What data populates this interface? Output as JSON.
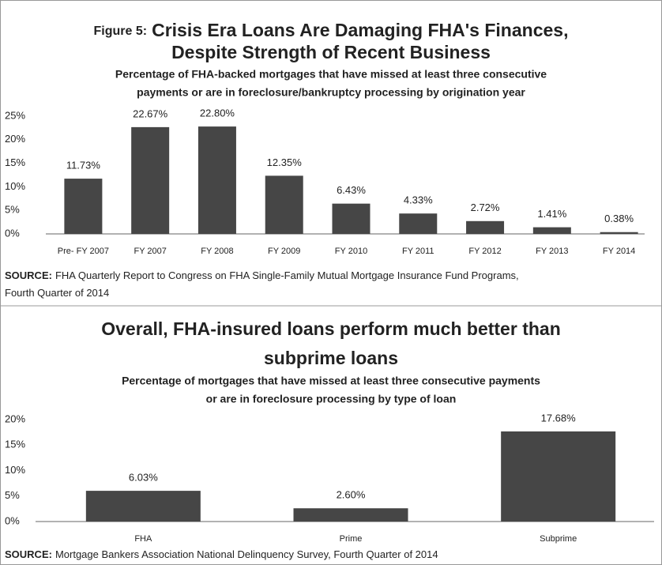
{
  "chart_data": [
    {
      "type": "bar",
      "figure_label": "Figure 5:",
      "title": [
        "Crisis Era Loans Are Damaging FHA's Finances,",
        "Despite Strength of Recent Business"
      ],
      "subtitle": [
        "Percentage of FHA-backed mortgages that have missed at least three consecutive",
        "payments or are in foreclosure/bankruptcy processing by origination year"
      ],
      "categories": [
        "Pre- FY 2007",
        "FY 2007",
        "FY 2008",
        "FY 2009",
        "FY 2010",
        "FY 2011",
        "FY 2012",
        "FY 2013",
        "FY 2014"
      ],
      "values": [
        11.73,
        22.67,
        22.8,
        12.35,
        6.43,
        4.33,
        2.72,
        1.41,
        0.38
      ],
      "value_labels": [
        "11.73%",
        "22.67%",
        "22.80%",
        "12.35%",
        "6.43%",
        "4.33%",
        "2.72%",
        "1.41%",
        "0.38%"
      ],
      "color": "#464646",
      "ylim": [
        0,
        25
      ],
      "yticks": [
        {
          "value": 0,
          "label": "0%"
        },
        {
          "value": 5,
          "label": "5%"
        },
        {
          "value": 10,
          "label": "10%"
        },
        {
          "value": 15,
          "label": "15%"
        },
        {
          "value": 20,
          "label": "20%"
        },
        {
          "value": 25,
          "label": "25%"
        }
      ],
      "grid": false,
      "source_label": "SOURCE:",
      "source": [
        "FHA Quarterly Report to Congress on FHA Single-Family Mutual Mortgage Insurance Fund Programs,",
        "Fourth Quarter of 2014"
      ]
    },
    {
      "type": "bar",
      "title": [
        "Overall, FHA-insured loans perform much better than",
        "subprime loans"
      ],
      "subtitle": [
        "Percentage of mortgages that have missed at least three consecutive payments",
        "or are in foreclosure processing by type of loan"
      ],
      "categories": [
        "FHA",
        "Prime",
        "Subprime"
      ],
      "values": [
        6.03,
        2.6,
        17.68
      ],
      "value_labels": [
        "6.03%",
        "2.60%",
        "17.68%"
      ],
      "color": "#464646",
      "ylim": [
        0,
        20
      ],
      "yticks": [
        {
          "value": 0,
          "label": "0%"
        },
        {
          "value": 5,
          "label": "5%"
        },
        {
          "value": 10,
          "label": "10%"
        },
        {
          "value": 15,
          "label": "15%"
        },
        {
          "value": 20,
          "label": "20%"
        }
      ],
      "grid": false,
      "source_label": "SOURCE:",
      "source": [
        "Mortgage Bankers Association National Delinquency Survey, Fourth Quarter of 2014"
      ]
    }
  ]
}
